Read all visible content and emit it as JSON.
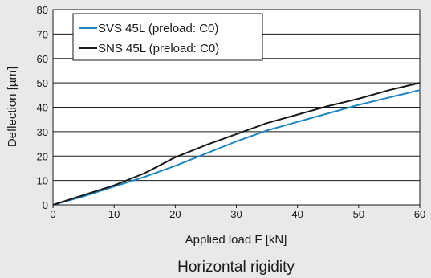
{
  "chart_data": {
    "type": "line",
    "title": "Horizontal rigidity",
    "xlabel": "Applied load F [kN]",
    "ylabel": "Deflection [µm]",
    "xlim": [
      0,
      60
    ],
    "ylim": [
      0,
      80
    ],
    "x_ticks": [
      0,
      10,
      20,
      30,
      40,
      50,
      60
    ],
    "y_ticks": [
      0,
      10,
      20,
      30,
      40,
      50,
      60,
      70,
      80
    ],
    "grid": "horizontal",
    "legend_position": "top-left",
    "series": [
      {
        "name": "SVS 45L (preload: C0)",
        "color": "#1f86c4",
        "x": [
          0,
          5,
          10,
          15,
          20,
          25,
          30,
          35,
          40,
          45,
          50,
          55,
          60
        ],
        "y": [
          0,
          3.5,
          7.5,
          11.5,
          16,
          21,
          26,
          30.5,
          34,
          37.5,
          41,
          44,
          47
        ]
      },
      {
        "name": "SNS 45L (preload: C0)",
        "color": "#1a1a1a",
        "x": [
          0,
          5,
          10,
          15,
          20,
          25,
          30,
          35,
          40,
          45,
          50,
          55,
          60
        ],
        "y": [
          0,
          4,
          8,
          13,
          19.5,
          24.5,
          29,
          33.5,
          37,
          40.5,
          43.5,
          47,
          50
        ]
      }
    ]
  }
}
